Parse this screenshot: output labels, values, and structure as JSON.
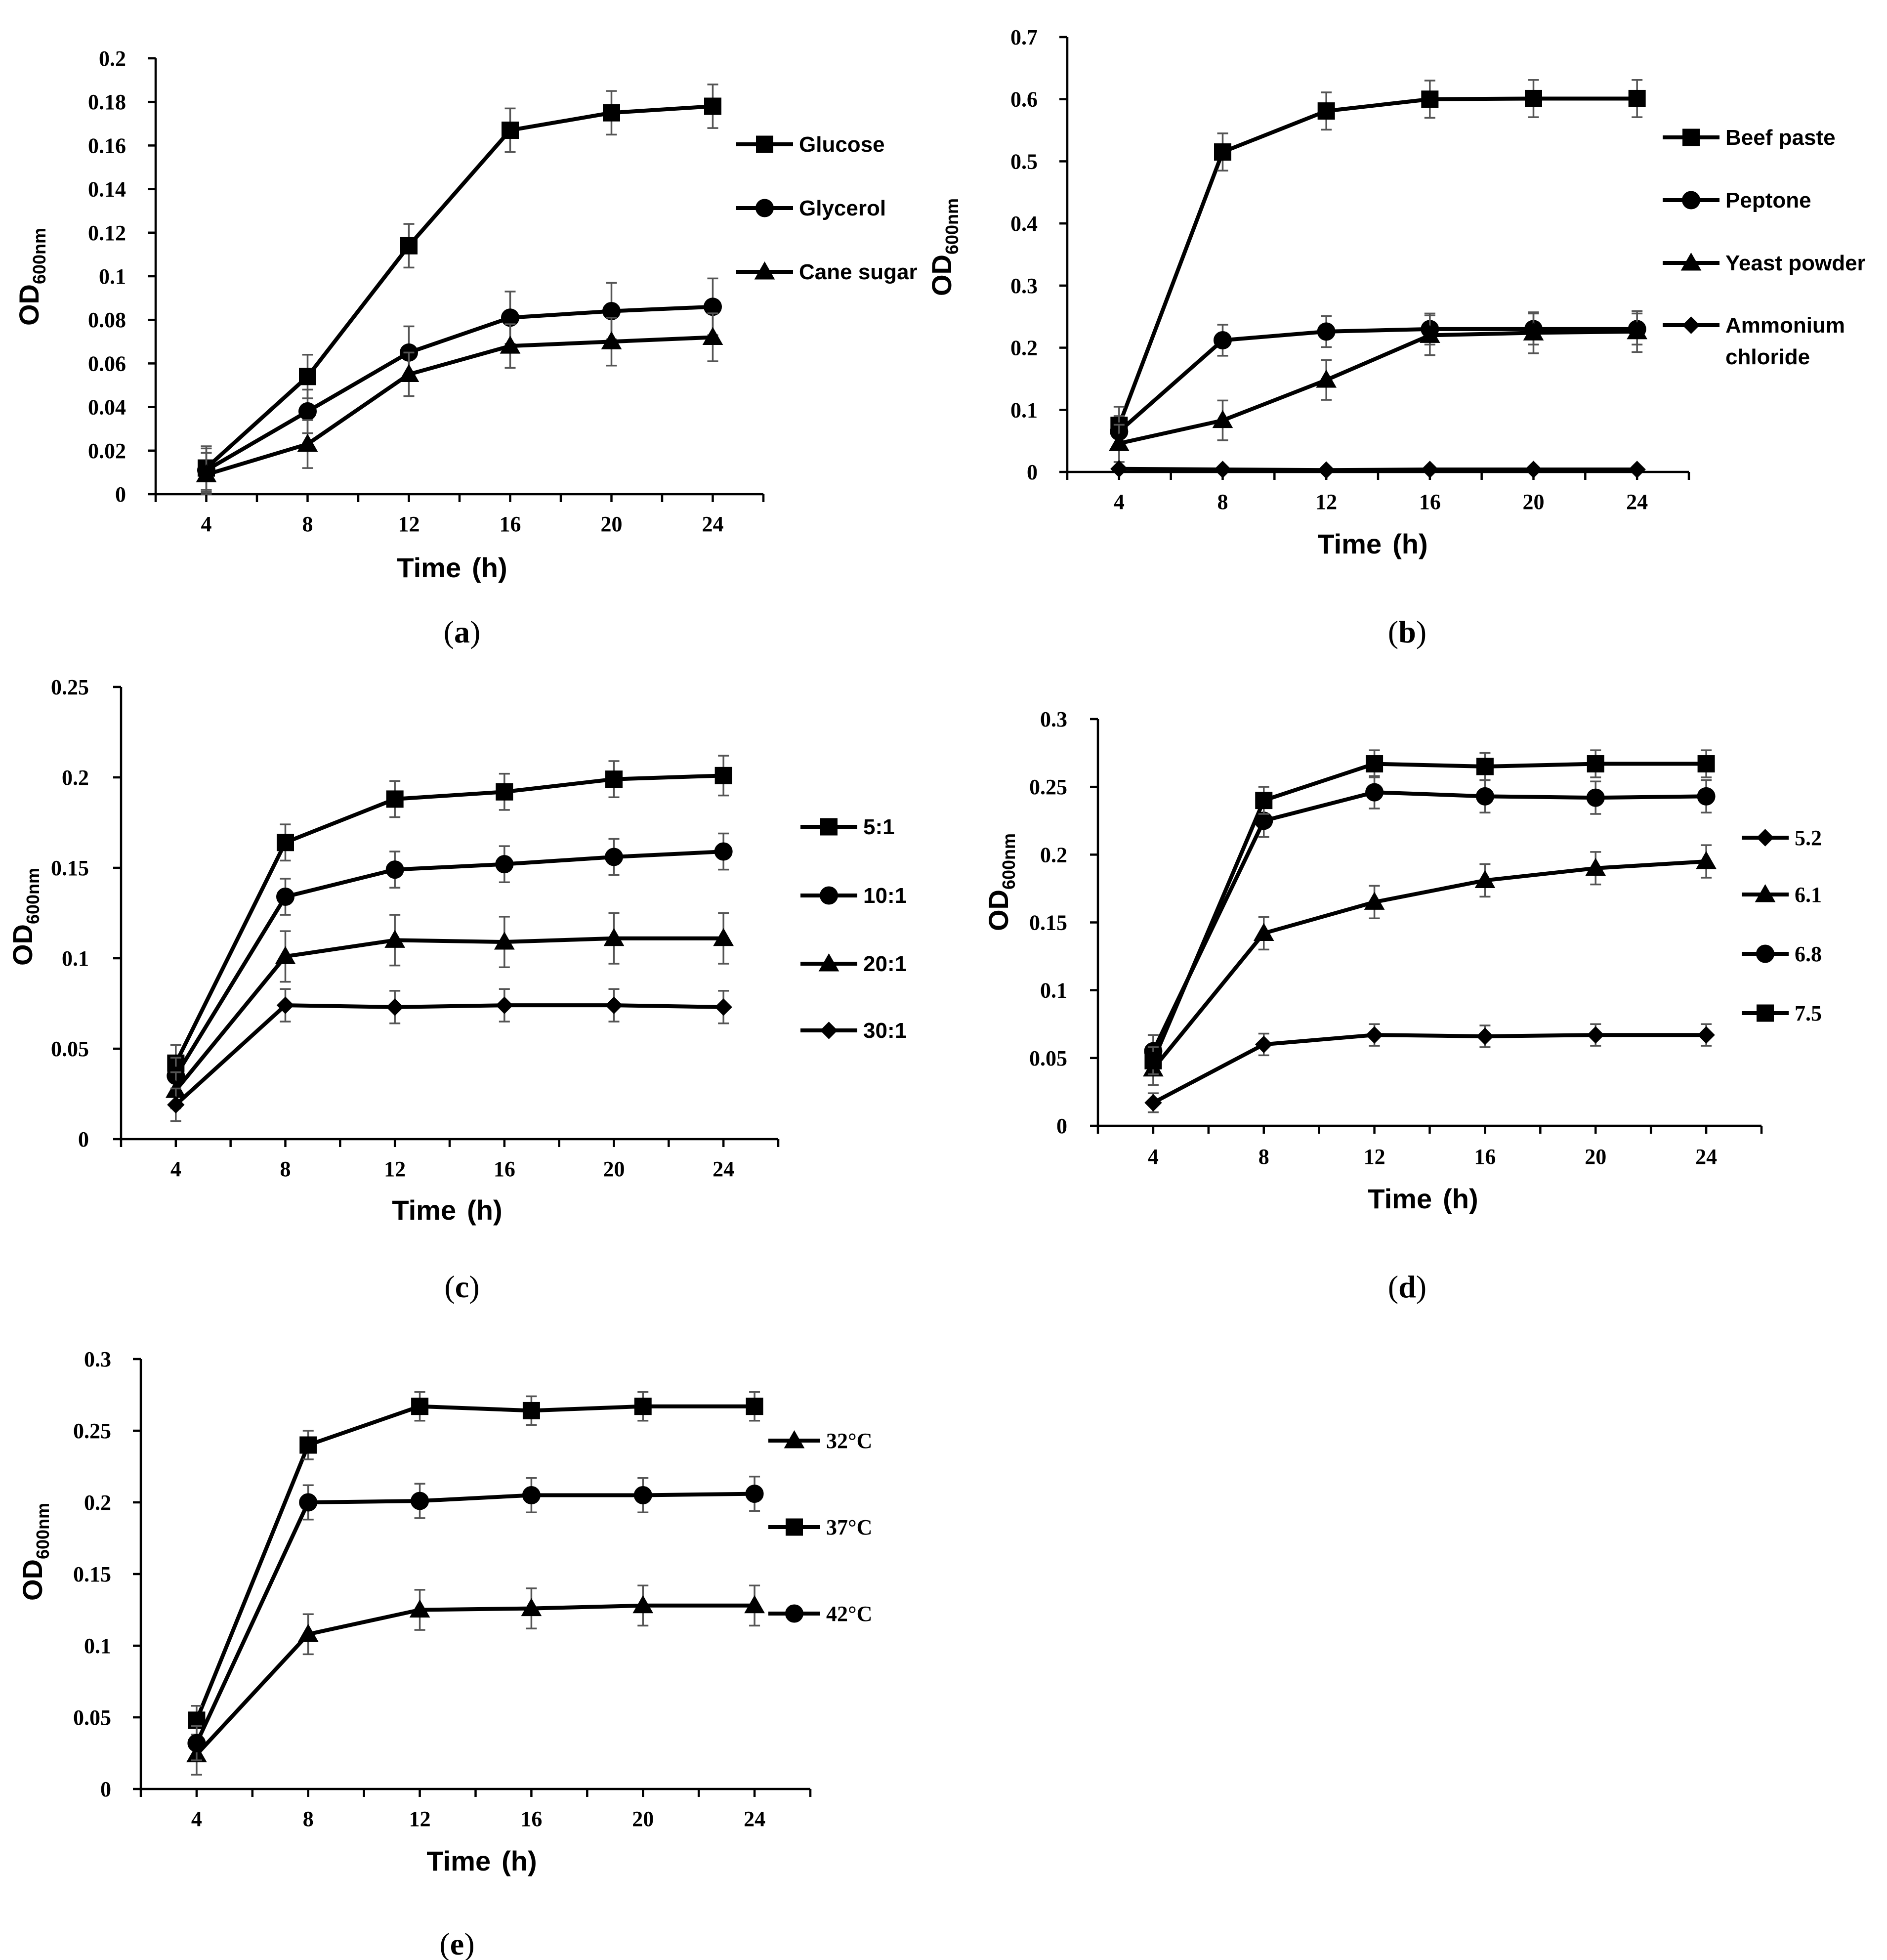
{
  "chart_data": [
    {
      "id": "a",
      "type": "line",
      "panel_label": "a",
      "xlabel": "Time",
      "xunit": "(h)",
      "ylabel": "OD",
      "ylabel_sub": "600nm",
      "ylim": [
        0,
        0.2
      ],
      "ytick_values": [
        0,
        0.02,
        0.04,
        0.06,
        0.08,
        0.1,
        0.12,
        0.14,
        0.16,
        0.18,
        0.2
      ],
      "yticks": [
        "0",
        "0.02",
        "0.04",
        "0.06",
        "0.08",
        "0.1",
        "0.12",
        "0.14",
        "0.16",
        "0.18",
        "0.2"
      ],
      "x": [
        4,
        8,
        12,
        16,
        20,
        24
      ],
      "xticks": [
        "4",
        "8",
        "12",
        "16",
        "20",
        "24"
      ],
      "legend_position": "right",
      "series": [
        {
          "name": "Glucose",
          "marker": "square",
          "values": [
            0.012,
            0.054,
            0.114,
            0.167,
            0.175,
            0.178
          ],
          "errors": [
            0.01,
            0.01,
            0.01,
            0.01,
            0.01,
            0.01
          ]
        },
        {
          "name": "Glycerol",
          "marker": "circle",
          "values": [
            0.011,
            0.038,
            0.065,
            0.081,
            0.084,
            0.086
          ],
          "errors": [
            0.01,
            0.01,
            0.012,
            0.012,
            0.013,
            0.013
          ]
        },
        {
          "name": "Cane sugar",
          "marker": "triangle",
          "values": [
            0.009,
            0.023,
            0.055,
            0.068,
            0.07,
            0.072
          ],
          "errors": [
            0.01,
            0.011,
            0.01,
            0.01,
            0.011,
            0.011
          ]
        }
      ]
    },
    {
      "id": "b",
      "type": "line",
      "panel_label": "b",
      "xlabel": "Time",
      "xunit": "(h)",
      "ylabel": "OD",
      "ylabel_sub": "600nm",
      "ylim": [
        0,
        0.7
      ],
      "ytick_values": [
        0,
        0.1,
        0.2,
        0.3,
        0.4,
        0.5,
        0.6,
        0.7
      ],
      "yticks": [
        "0",
        "0.1",
        "0.2",
        "0.3",
        "0.4",
        "0.5",
        "0.6",
        "0.7"
      ],
      "x": [
        4,
        8,
        12,
        16,
        20,
        24
      ],
      "xticks": [
        "4",
        "8",
        "12",
        "16",
        "20",
        "24"
      ],
      "legend_position": "right",
      "series": [
        {
          "name": "Beef paste",
          "marker": "square",
          "values": [
            0.075,
            0.515,
            0.581,
            0.6,
            0.601,
            0.601
          ],
          "errors": [
            0.03,
            0.03,
            0.03,
            0.03,
            0.03,
            0.03
          ]
        },
        {
          "name": "Peptone",
          "marker": "circle",
          "values": [
            0.065,
            0.212,
            0.226,
            0.23,
            0.23,
            0.23
          ],
          "errors": [
            0.025,
            0.025,
            0.025,
            0.025,
            0.025,
            0.025
          ]
        },
        {
          "name": "Yeast powder",
          "marker": "triangle",
          "values": [
            0.046,
            0.083,
            0.148,
            0.22,
            0.224,
            0.226
          ],
          "errors": [
            0.03,
            0.032,
            0.032,
            0.032,
            0.033,
            0.033
          ]
        },
        {
          "name": "Ammonium chloride",
          "marker": "diamond",
          "values": [
            0.005,
            0.004,
            0.003,
            0.004,
            0.004,
            0.004
          ],
          "errors": [
            0.002,
            0.002,
            0.002,
            0.002,
            0.002,
            0.002
          ]
        }
      ]
    },
    {
      "id": "c",
      "type": "line",
      "panel_label": "c",
      "xlabel": "Time",
      "xunit": "(h)",
      "ylabel": "OD",
      "ylabel_sub": "600nm",
      "ylim": [
        0,
        0.25
      ],
      "ytick_values": [
        0,
        0.05,
        0.1,
        0.15,
        0.2,
        0.25
      ],
      "yticks": [
        "0",
        "0.05",
        "0.1",
        "0.15",
        "0.2",
        "0.25"
      ],
      "x": [
        4,
        8,
        12,
        16,
        20,
        24
      ],
      "xticks": [
        "4",
        "8",
        "12",
        "16",
        "20",
        "24"
      ],
      "legend_position": "right",
      "series": [
        {
          "name": "5:1",
          "marker": "square",
          "values": [
            0.042,
            0.164,
            0.188,
            0.192,
            0.199,
            0.201
          ],
          "errors": [
            0.01,
            0.01,
            0.01,
            0.01,
            0.01,
            0.011
          ]
        },
        {
          "name": "10:1",
          "marker": "circle",
          "values": [
            0.035,
            0.134,
            0.149,
            0.152,
            0.156,
            0.159
          ],
          "errors": [
            0.01,
            0.01,
            0.01,
            0.01,
            0.01,
            0.01
          ]
        },
        {
          "name": "20:1",
          "marker": "triangle",
          "values": [
            0.027,
            0.101,
            0.11,
            0.109,
            0.111,
            0.111
          ],
          "errors": [
            0.01,
            0.014,
            0.014,
            0.014,
            0.014,
            0.014
          ]
        },
        {
          "name": "30:1",
          "marker": "diamond",
          "values": [
            0.019,
            0.074,
            0.073,
            0.074,
            0.074,
            0.073
          ],
          "errors": [
            0.009,
            0.009,
            0.009,
            0.009,
            0.009,
            0.009
          ]
        }
      ]
    },
    {
      "id": "d",
      "type": "line",
      "panel_label": "d",
      "xlabel": "Time",
      "xunit": "(h)",
      "ylabel": "OD",
      "ylabel_sub": "600nm",
      "ylim": [
        0,
        0.3
      ],
      "ytick_values": [
        0,
        0.05,
        0.1,
        0.15,
        0.2,
        0.25,
        0.3
      ],
      "yticks": [
        "0",
        "0.05",
        "0.1",
        "0.15",
        "0.2",
        "0.25",
        "0.3"
      ],
      "x": [
        4,
        8,
        12,
        16,
        20,
        24
      ],
      "xticks": [
        "4",
        "8",
        "12",
        "16",
        "20",
        "24"
      ],
      "legend_position": "right",
      "series": [
        {
          "name": "5.2",
          "marker": "diamond",
          "values": [
            0.017,
            0.06,
            0.067,
            0.066,
            0.067,
            0.067
          ],
          "errors": [
            0.007,
            0.008,
            0.008,
            0.008,
            0.008,
            0.008
          ]
        },
        {
          "name": "6.1",
          "marker": "triangle",
          "values": [
            0.042,
            0.142,
            0.165,
            0.181,
            0.19,
            0.195
          ],
          "errors": [
            0.012,
            0.012,
            0.012,
            0.012,
            0.012,
            0.012
          ]
        },
        {
          "name": "6.8",
          "marker": "circle",
          "values": [
            0.055,
            0.225,
            0.246,
            0.243,
            0.242,
            0.243
          ],
          "errors": [
            0.012,
            0.012,
            0.012,
            0.012,
            0.012,
            0.012
          ]
        },
        {
          "name": "7.5",
          "marker": "square",
          "values": [
            0.048,
            0.24,
            0.267,
            0.265,
            0.267,
            0.267
          ],
          "errors": [
            0.01,
            0.01,
            0.01,
            0.01,
            0.01,
            0.01
          ]
        }
      ]
    },
    {
      "id": "e",
      "type": "line",
      "panel_label": "e",
      "xlabel": "Time",
      "xunit": "(h)",
      "ylabel": "OD",
      "ylabel_sub": "600nm",
      "ylim": [
        0,
        0.3
      ],
      "ytick_values": [
        0,
        0.05,
        0.1,
        0.15,
        0.2,
        0.25,
        0.3
      ],
      "yticks": [
        "0",
        "0.05",
        "0.1",
        "0.15",
        "0.2",
        "0.25",
        "0.3"
      ],
      "x": [
        4,
        8,
        12,
        16,
        20,
        24
      ],
      "xticks": [
        "4",
        "8",
        "12",
        "16",
        "20",
        "24"
      ],
      "legend_position": "right",
      "series": [
        {
          "name": "32°C",
          "marker": "triangle",
          "values": [
            0.024,
            0.108,
            0.125,
            0.126,
            0.128,
            0.128
          ],
          "errors": [
            0.014,
            0.014,
            0.014,
            0.014,
            0.014,
            0.014
          ]
        },
        {
          "name": "37°C",
          "marker": "square",
          "values": [
            0.048,
            0.24,
            0.267,
            0.264,
            0.267,
            0.267
          ],
          "errors": [
            0.01,
            0.01,
            0.01,
            0.01,
            0.01,
            0.01
          ]
        },
        {
          "name": "42°C",
          "marker": "circle",
          "values": [
            0.032,
            0.2,
            0.201,
            0.205,
            0.205,
            0.206
          ],
          "errors": [
            0.012,
            0.012,
            0.012,
            0.012,
            0.012,
            0.012
          ]
        }
      ]
    }
  ]
}
